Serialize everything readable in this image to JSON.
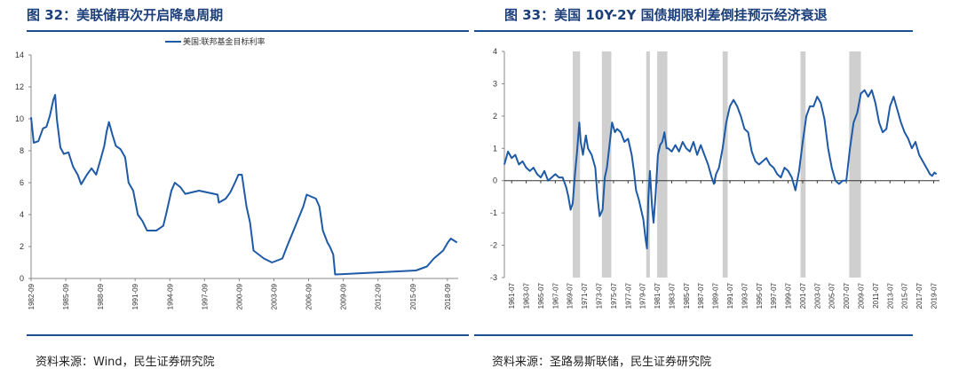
{
  "left": {
    "title": "图 32：美联储再次开启降息周期",
    "source": "资料来源：Wind，民生证券研究院",
    "chart_data": {
      "type": "line",
      "title": "",
      "xlabel": "",
      "ylabel": "",
      "ylim": [
        0,
        14
      ],
      "yticks": [
        0,
        2,
        4,
        6,
        8,
        10,
        12,
        14
      ],
      "xticks": [
        "1982-09",
        "1985-09",
        "1988-09",
        "1991-09",
        "1994-09",
        "1997-09",
        "2000-09",
        "2003-09",
        "2006-09",
        "2009-09",
        "2012-09",
        "2015-09",
        "2018-09"
      ],
      "legend": "top-center",
      "grid": false,
      "series": [
        {
          "name": "美国:联邦基金目标利率",
          "color": "#1f5aa6",
          "x": [
            1982.67,
            1982.9,
            1983.3,
            1983.7,
            1984.0,
            1984.3,
            1984.6,
            1984.75,
            1984.9,
            1985.2,
            1985.5,
            1985.9,
            1986.3,
            1986.7,
            1987.0,
            1987.5,
            1987.9,
            1988.3,
            1988.7,
            1989.0,
            1989.2,
            1989.4,
            1989.7,
            1990.0,
            1990.4,
            1990.8,
            1991.1,
            1991.5,
            1991.9,
            1992.3,
            1992.7,
            1993.5,
            1994.1,
            1994.4,
            1994.8,
            1995.1,
            1995.6,
            1996.0,
            1997.2,
            1998.8,
            1998.9,
            1999.5,
            1999.9,
            2000.3,
            2000.6,
            2000.9,
            2001.1,
            2001.3,
            2001.6,
            2001.9,
            2002.8,
            2003.5,
            2004.4,
            2004.8,
            2005.5,
            2006.2,
            2006.5,
            2007.3,
            2007.6,
            2007.9,
            2008.3,
            2008.5,
            2008.8,
            2008.96,
            2015.95,
            2016.9,
            2017.2,
            2017.5,
            2017.9,
            2018.3,
            2018.7,
            2018.96,
            2019.5
          ],
          "values": [
            10.1,
            8.5,
            8.6,
            9.4,
            9.5,
            10.2,
            11.2,
            11.5,
            10.0,
            8.2,
            7.8,
            7.9,
            7.0,
            6.5,
            5.9,
            6.5,
            6.9,
            6.5,
            7.5,
            8.3,
            9.2,
            9.8,
            9.0,
            8.3,
            8.1,
            7.6,
            6.0,
            5.5,
            4.0,
            3.6,
            3.0,
            3.0,
            3.3,
            4.2,
            5.5,
            6.0,
            5.7,
            5.3,
            5.5,
            5.25,
            4.75,
            5.0,
            5.4,
            6.0,
            6.5,
            6.5,
            5.5,
            4.5,
            3.5,
            1.75,
            1.25,
            1.0,
            1.25,
            2.0,
            3.25,
            4.5,
            5.25,
            5.0,
            4.5,
            3.0,
            2.25,
            2.0,
            1.5,
            0.25,
            0.5,
            0.75,
            1.0,
            1.25,
            1.5,
            1.75,
            2.25,
            2.5,
            2.25
          ]
        }
      ]
    }
  },
  "right": {
    "title": "图 33：美国 10Y-2Y 国债期限利差倒挂预示经济衰退",
    "source": "资料来源：圣路易斯联储，民生证券研究院",
    "chart_data": {
      "type": "line",
      "title": "",
      "xlabel": "",
      "ylabel": "",
      "ylim": [
        -3,
        4
      ],
      "yticks": [
        -3,
        -2,
        -1,
        0,
        1,
        2,
        3,
        4
      ],
      "xticks": [
        "1961-07",
        "1963-07",
        "1965-07",
        "1967-07",
        "1969-07",
        "1971-07",
        "1973-07",
        "1975-07",
        "1977-07",
        "1979-07",
        "1981-07",
        "1983-07",
        "1985-07",
        "1987-07",
        "1989-07",
        "1991-07",
        "1993-07",
        "1995-07",
        "1997-07",
        "1999-07",
        "2001-07",
        "2003-07",
        "2005-07",
        "2007-07",
        "2009-07",
        "2011-07",
        "2013-07",
        "2015-07",
        "2017-07",
        "2019-07"
      ],
      "legend": "none",
      "grid": false,
      "recession_color": "#cfcfcf",
      "recessions": [
        [
          1969.9,
          1970.9
        ],
        [
          1973.9,
          1975.2
        ],
        [
          1980.0,
          1980.5
        ],
        [
          1981.5,
          1982.9
        ],
        [
          1990.5,
          1991.2
        ],
        [
          2001.2,
          2001.9
        ],
        [
          2007.9,
          2009.5
        ]
      ],
      "series": [
        {
          "name": "10Y-2Y",
          "color": "#1f5aa6",
          "x": [
            1960.5,
            1961.0,
            1961.5,
            1962.0,
            1962.5,
            1963.0,
            1963.5,
            1964.0,
            1964.5,
            1965.0,
            1965.5,
            1966.0,
            1966.5,
            1967.0,
            1967.5,
            1968.0,
            1968.5,
            1969.0,
            1969.3,
            1969.6,
            1969.9,
            1970.2,
            1970.5,
            1970.8,
            1971.0,
            1971.3,
            1971.7,
            1972.0,
            1972.5,
            1973.0,
            1973.3,
            1973.6,
            1974.0,
            1974.3,
            1974.6,
            1975.0,
            1975.3,
            1975.7,
            1976.0,
            1976.5,
            1977.0,
            1977.5,
            1978.0,
            1978.3,
            1978.6,
            1979.0,
            1979.3,
            1979.6,
            1979.9,
            1980.1,
            1980.3,
            1980.5,
            1980.8,
            1981.0,
            1981.3,
            1981.6,
            1981.9,
            1982.2,
            1982.5,
            1982.8,
            1983.0,
            1983.5,
            1984.0,
            1984.5,
            1985.0,
            1985.5,
            1986.0,
            1986.5,
            1987.0,
            1987.5,
            1988.0,
            1988.5,
            1989.0,
            1989.3,
            1989.6,
            1990.0,
            1990.5,
            1991.0,
            1991.5,
            1992.0,
            1992.5,
            1993.0,
            1993.5,
            1994.0,
            1994.5,
            1995.0,
            1995.5,
            1996.0,
            1996.5,
            1997.0,
            1997.5,
            1998.0,
            1998.5,
            1999.0,
            1999.5,
            2000.0,
            2000.5,
            2001.0,
            2001.5,
            2002.0,
            2002.5,
            2003.0,
            2003.5,
            2004.0,
            2004.5,
            2005.0,
            2005.5,
            2006.0,
            2006.5,
            2007.0,
            2007.5,
            2008.0,
            2008.5,
            2009.0,
            2009.5,
            2010.0,
            2010.5,
            2011.0,
            2011.5,
            2012.0,
            2012.5,
            2013.0,
            2013.5,
            2014.0,
            2014.5,
            2015.0,
            2015.5,
            2016.0,
            2016.5,
            2017.0,
            2017.5,
            2018.0,
            2018.5,
            2019.0,
            2019.3,
            2019.6,
            2019.9
          ],
          "values": [
            0.5,
            0.9,
            0.7,
            0.8,
            0.5,
            0.6,
            0.4,
            0.3,
            0.4,
            0.2,
            0.1,
            0.3,
            0.0,
            0.1,
            0.2,
            0.1,
            0.1,
            -0.2,
            -0.5,
            -0.9,
            -0.7,
            0.2,
            0.9,
            1.8,
            1.2,
            0.8,
            1.4,
            1.0,
            0.8,
            0.4,
            -0.5,
            -1.1,
            -0.9,
            0.1,
            0.4,
            1.2,
            1.8,
            1.5,
            1.6,
            1.5,
            1.2,
            1.3,
            0.8,
            0.3,
            -0.3,
            -0.6,
            -0.9,
            -1.2,
            -1.8,
            -2.1,
            -0.5,
            0.3,
            -0.8,
            -1.3,
            -0.4,
            0.8,
            1.1,
            1.2,
            1.5,
            1.0,
            1.0,
            0.9,
            1.1,
            0.9,
            1.2,
            1.0,
            0.9,
            1.2,
            0.8,
            1.1,
            0.8,
            0.5,
            0.1,
            -0.1,
            0.2,
            0.4,
            1.0,
            1.8,
            2.3,
            2.5,
            2.3,
            2.0,
            1.6,
            1.5,
            0.9,
            0.6,
            0.5,
            0.6,
            0.7,
            0.5,
            0.4,
            0.2,
            0.1,
            0.4,
            0.3,
            0.1,
            -0.3,
            0.3,
            1.2,
            2.0,
            2.3,
            2.3,
            2.6,
            2.4,
            1.9,
            1.0,
            0.4,
            0.0,
            -0.1,
            0.0,
            0.0,
            1.0,
            1.8,
            2.1,
            2.7,
            2.8,
            2.6,
            2.8,
            2.4,
            1.8,
            1.5,
            1.6,
            2.3,
            2.6,
            2.2,
            1.8,
            1.5,
            1.3,
            1.0,
            1.2,
            0.8,
            0.6,
            0.4,
            0.2,
            0.15,
            0.25,
            0.2
          ]
        }
      ]
    }
  }
}
